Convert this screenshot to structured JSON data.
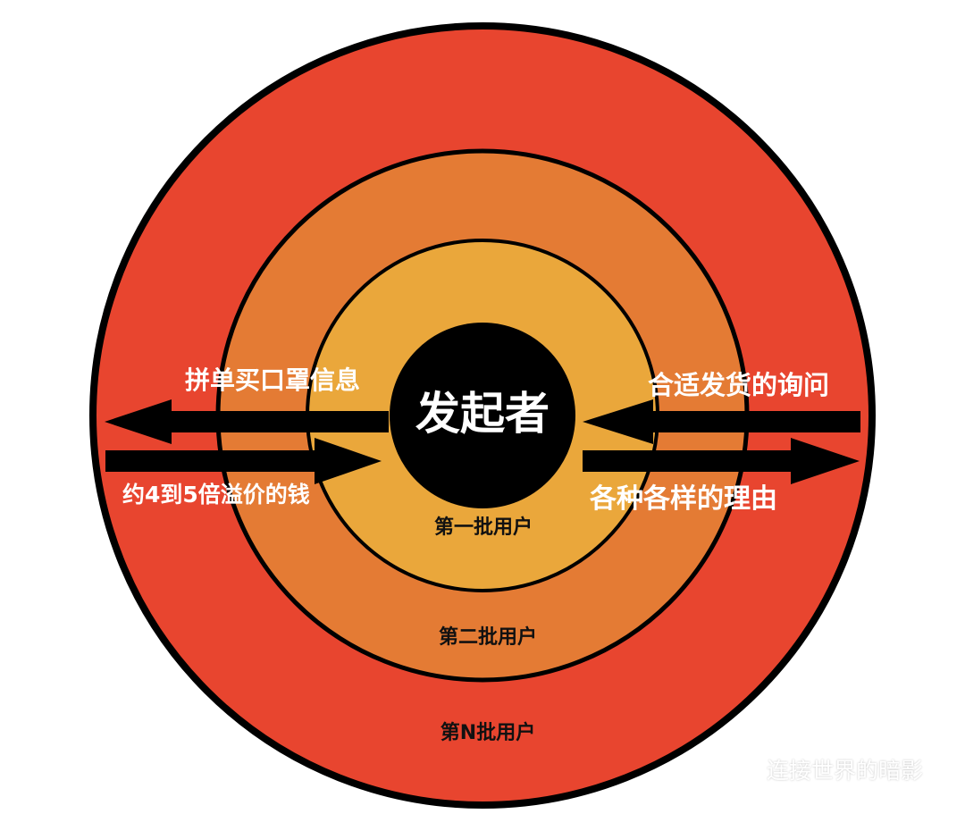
{
  "diagram": {
    "center": "发起者",
    "rings": {
      "inner": "第一批用户",
      "middle": "第二批用户",
      "outer": "第N批用户"
    },
    "left_flows": {
      "top": "拼单买口罩信息",
      "bottom": "约4到5倍溢价的钱"
    },
    "right_flows": {
      "top": "合适发货的询问",
      "bottom": "各种各样的理由"
    },
    "colors": {
      "outer_ring": "#e8452f",
      "middle_ring": "#e47b34",
      "inner_ring": "#eaa73b",
      "center": "#000000",
      "label_light": "#ffffff",
      "label_dark": "#111111"
    }
  },
  "watermark": {
    "text": "连接世界的暗影",
    "icon": "wechat-icon"
  }
}
